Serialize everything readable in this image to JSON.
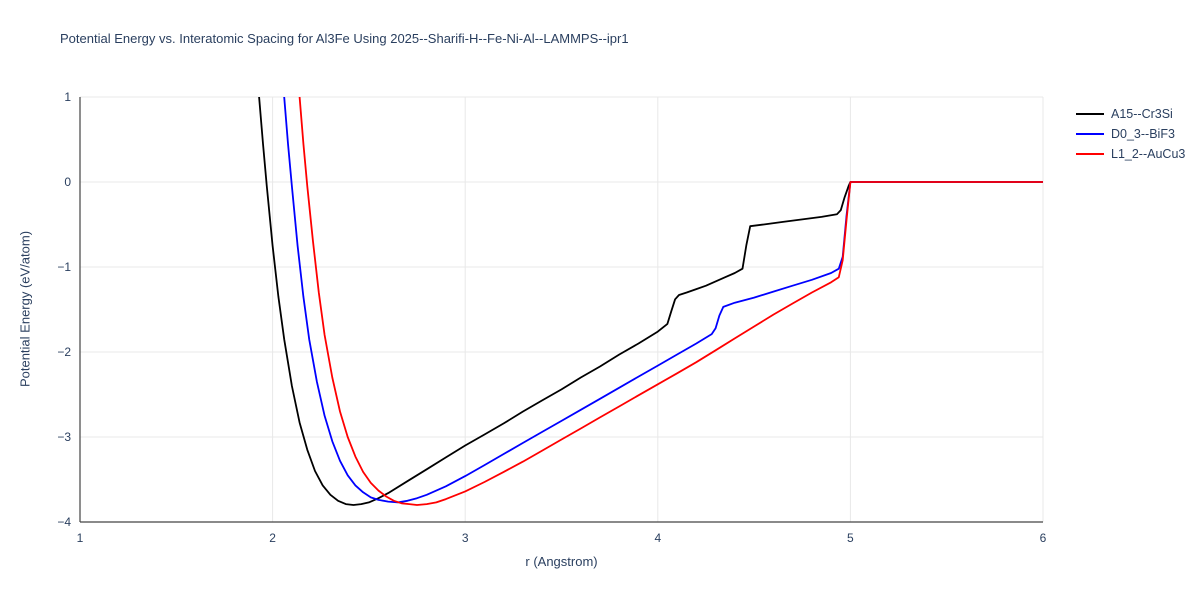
{
  "chart_data": {
    "type": "line",
    "title": "Potential Energy vs. Interatomic Spacing for Al3Fe Using 2025--Sharifi-H--Fe-Ni-Al--LAMMPS--ipr1",
    "xlabel": "r (Angstrom)",
    "ylabel": "Potential Energy (eV/atom)",
    "xlim": [
      1,
      6
    ],
    "ylim": [
      -4,
      1
    ],
    "xticks": [
      1,
      2,
      3,
      4,
      5,
      6
    ],
    "yticks": [
      -4,
      -3,
      -2,
      -1,
      0,
      1
    ],
    "grid": true,
    "grid_color": "#e8e8e8",
    "axis_color": "#444444",
    "text_color": "#2a3f5f",
    "legend_position": "top-right-outside",
    "series": [
      {
        "name": "A15--Cr3Si",
        "color": "#000000",
        "points": [
          [
            1.9,
            2.2
          ],
          [
            1.93,
            1.0
          ],
          [
            1.95,
            0.45
          ],
          [
            1.97,
            -0.05
          ],
          [
            2.0,
            -0.75
          ],
          [
            2.03,
            -1.35
          ],
          [
            2.06,
            -1.85
          ],
          [
            2.1,
            -2.4
          ],
          [
            2.14,
            -2.83
          ],
          [
            2.18,
            -3.15
          ],
          [
            2.22,
            -3.4
          ],
          [
            2.26,
            -3.57
          ],
          [
            2.3,
            -3.68
          ],
          [
            2.34,
            -3.75
          ],
          [
            2.38,
            -3.79
          ],
          [
            2.42,
            -3.8
          ],
          [
            2.46,
            -3.79
          ],
          [
            2.5,
            -3.77
          ],
          [
            2.55,
            -3.72
          ],
          [
            2.6,
            -3.66
          ],
          [
            2.7,
            -3.52
          ],
          [
            2.8,
            -3.38
          ],
          [
            2.9,
            -3.24
          ],
          [
            3.0,
            -3.1
          ],
          [
            3.1,
            -2.97
          ],
          [
            3.2,
            -2.84
          ],
          [
            3.3,
            -2.7
          ],
          [
            3.4,
            -2.57
          ],
          [
            3.5,
            -2.44
          ],
          [
            3.6,
            -2.3
          ],
          [
            3.7,
            -2.17
          ],
          [
            3.8,
            -2.03
          ],
          [
            3.9,
            -1.9
          ],
          [
            4.0,
            -1.76
          ],
          [
            4.05,
            -1.67
          ],
          [
            4.07,
            -1.52
          ],
          [
            4.09,
            -1.38
          ],
          [
            4.11,
            -1.33
          ],
          [
            4.15,
            -1.3
          ],
          [
            4.2,
            -1.26
          ],
          [
            4.25,
            -1.22
          ],
          [
            4.3,
            -1.17
          ],
          [
            4.35,
            -1.12
          ],
          [
            4.4,
            -1.07
          ],
          [
            4.44,
            -1.02
          ],
          [
            4.46,
            -0.74
          ],
          [
            4.48,
            -0.52
          ],
          [
            4.55,
            -0.5
          ],
          [
            4.65,
            -0.47
          ],
          [
            4.75,
            -0.44
          ],
          [
            4.85,
            -0.41
          ],
          [
            4.93,
            -0.38
          ],
          [
            4.95,
            -0.33
          ],
          [
            4.97,
            -0.18
          ],
          [
            4.99,
            -0.05
          ],
          [
            5.0,
            0.0
          ],
          [
            5.5,
            0.0
          ],
          [
            6.0,
            0.0
          ]
        ]
      },
      {
        "name": "D0_3--BiF3",
        "color": "#0000ff",
        "points": [
          [
            2.03,
            2.2
          ],
          [
            2.06,
            1.0
          ],
          [
            2.08,
            0.45
          ],
          [
            2.1,
            -0.05
          ],
          [
            2.13,
            -0.75
          ],
          [
            2.16,
            -1.35
          ],
          [
            2.19,
            -1.85
          ],
          [
            2.23,
            -2.35
          ],
          [
            2.27,
            -2.75
          ],
          [
            2.31,
            -3.05
          ],
          [
            2.35,
            -3.28
          ],
          [
            2.39,
            -3.45
          ],
          [
            2.43,
            -3.57
          ],
          [
            2.47,
            -3.65
          ],
          [
            2.51,
            -3.71
          ],
          [
            2.55,
            -3.74
          ],
          [
            2.6,
            -3.76
          ],
          [
            2.65,
            -3.77
          ],
          [
            2.7,
            -3.75
          ],
          [
            2.75,
            -3.72
          ],
          [
            2.8,
            -3.68
          ],
          [
            2.9,
            -3.58
          ],
          [
            3.0,
            -3.46
          ],
          [
            3.1,
            -3.33
          ],
          [
            3.2,
            -3.2
          ],
          [
            3.3,
            -3.07
          ],
          [
            3.4,
            -2.94
          ],
          [
            3.5,
            -2.81
          ],
          [
            3.6,
            -2.68
          ],
          [
            3.7,
            -2.55
          ],
          [
            3.8,
            -2.42
          ],
          [
            3.9,
            -2.29
          ],
          [
            4.0,
            -2.16
          ],
          [
            4.1,
            -2.03
          ],
          [
            4.2,
            -1.9
          ],
          [
            4.28,
            -1.79
          ],
          [
            4.3,
            -1.72
          ],
          [
            4.32,
            -1.57
          ],
          [
            4.34,
            -1.47
          ],
          [
            4.4,
            -1.42
          ],
          [
            4.5,
            -1.36
          ],
          [
            4.6,
            -1.29
          ],
          [
            4.7,
            -1.22
          ],
          [
            4.8,
            -1.15
          ],
          [
            4.9,
            -1.07
          ],
          [
            4.94,
            -1.02
          ],
          [
            4.96,
            -0.88
          ],
          [
            4.98,
            -0.4
          ],
          [
            5.0,
            0.0
          ],
          [
            5.5,
            0.0
          ],
          [
            6.0,
            0.0
          ]
        ]
      },
      {
        "name": "L1_2--AuCu3",
        "color": "#ff0000",
        "points": [
          [
            2.11,
            2.2
          ],
          [
            2.14,
            1.0
          ],
          [
            2.16,
            0.45
          ],
          [
            2.18,
            -0.05
          ],
          [
            2.21,
            -0.7
          ],
          [
            2.24,
            -1.3
          ],
          [
            2.27,
            -1.8
          ],
          [
            2.31,
            -2.3
          ],
          [
            2.35,
            -2.7
          ],
          [
            2.39,
            -3.0
          ],
          [
            2.43,
            -3.23
          ],
          [
            2.47,
            -3.41
          ],
          [
            2.51,
            -3.54
          ],
          [
            2.55,
            -3.63
          ],
          [
            2.59,
            -3.7
          ],
          [
            2.63,
            -3.75
          ],
          [
            2.67,
            -3.78
          ],
          [
            2.71,
            -3.79
          ],
          [
            2.75,
            -3.8
          ],
          [
            2.8,
            -3.79
          ],
          [
            2.85,
            -3.77
          ],
          [
            2.9,
            -3.73
          ],
          [
            3.0,
            -3.64
          ],
          [
            3.1,
            -3.53
          ],
          [
            3.2,
            -3.41
          ],
          [
            3.3,
            -3.29
          ],
          [
            3.4,
            -3.16
          ],
          [
            3.5,
            -3.03
          ],
          [
            3.6,
            -2.9
          ],
          [
            3.7,
            -2.77
          ],
          [
            3.8,
            -2.64
          ],
          [
            3.9,
            -2.51
          ],
          [
            4.0,
            -2.38
          ],
          [
            4.1,
            -2.25
          ],
          [
            4.2,
            -2.12
          ],
          [
            4.3,
            -1.98
          ],
          [
            4.4,
            -1.84
          ],
          [
            4.5,
            -1.7
          ],
          [
            4.6,
            -1.56
          ],
          [
            4.7,
            -1.43
          ],
          [
            4.8,
            -1.3
          ],
          [
            4.9,
            -1.18
          ],
          [
            4.94,
            -1.12
          ],
          [
            4.96,
            -0.92
          ],
          [
            4.98,
            -0.45
          ],
          [
            5.0,
            0.0
          ],
          [
            5.5,
            0.0
          ],
          [
            6.0,
            0.0
          ]
        ]
      }
    ]
  }
}
